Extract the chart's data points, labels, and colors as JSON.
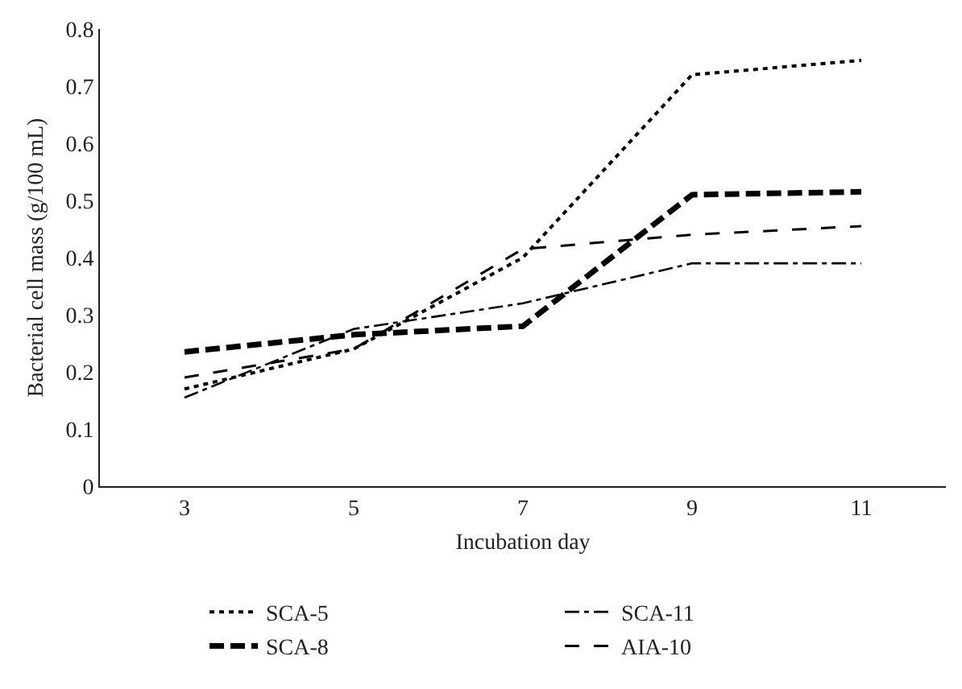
{
  "chart_data": {
    "type": "line",
    "xlabel": "Incubation day",
    "ylabel": "Bacterial cell mass (g/100 mL)",
    "categories": [
      "3",
      "5",
      "7",
      "9",
      "11"
    ],
    "series": [
      {
        "name": "SCA-5",
        "color": "#000000",
        "line_style": "dotted",
        "values": [
          0.17,
          0.24,
          0.4,
          0.72,
          0.745
        ]
      },
      {
        "name": "SCA-11",
        "color": "#000000",
        "line_style": "dashdot",
        "values": [
          0.155,
          0.275,
          0.32,
          0.39,
          0.39
        ]
      },
      {
        "name": "SCA-8",
        "color": "#000000",
        "line_style": "longdash",
        "values": [
          0.235,
          0.265,
          0.28,
          0.51,
          0.515
        ]
      },
      {
        "name": "AIA-10",
        "color": "#000000",
        "line_style": "dashed",
        "values": [
          0.19,
          0.24,
          0.415,
          0.44,
          0.455
        ]
      }
    ],
    "ylim": [
      0,
      0.8
    ],
    "yticks": [
      0,
      0.1,
      0.2,
      0.3,
      0.4,
      0.5,
      0.6,
      0.7,
      0.8
    ],
    "grid": false,
    "legend": "bottom",
    "marker": "none"
  }
}
